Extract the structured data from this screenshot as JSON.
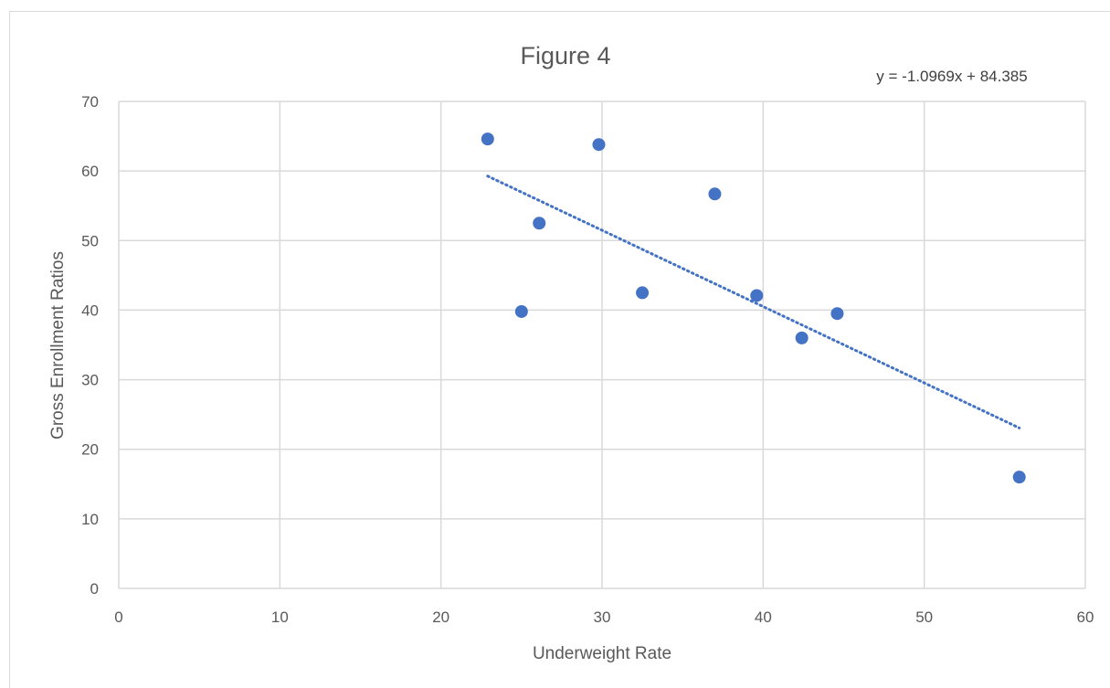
{
  "chart_data": {
    "type": "scatter",
    "title": "Figure 4",
    "xlabel": "Underweight Rate",
    "ylabel": "Gross Enrollment Ratios",
    "xlim": [
      0,
      60
    ],
    "ylim": [
      0,
      70
    ],
    "xticks": [
      0,
      10,
      20,
      30,
      40,
      50,
      60
    ],
    "yticks": [
      0,
      10,
      20,
      30,
      40,
      50,
      60,
      70
    ],
    "grid": true,
    "series": [
      {
        "color": "#4472c4",
        "points": [
          {
            "x": 22.9,
            "y": 64.6
          },
          {
            "x": 25.0,
            "y": 39.8
          },
          {
            "x": 26.1,
            "y": 52.5
          },
          {
            "x": 29.8,
            "y": 63.8
          },
          {
            "x": 32.5,
            "y": 42.5
          },
          {
            "x": 37.0,
            "y": 56.7
          },
          {
            "x": 39.6,
            "y": 42.1
          },
          {
            "x": 42.4,
            "y": 36.0
          },
          {
            "x": 44.6,
            "y": 39.5
          },
          {
            "x": 55.9,
            "y": 16.0
          }
        ]
      }
    ],
    "trendline": {
      "type": "linear",
      "style": "dotted",
      "color": "#4472c4",
      "slope": -1.0969,
      "intercept": 84.385,
      "x_range": [
        22.9,
        55.9
      ],
      "equation_label": "y = -1.0969x + 84.385"
    },
    "colors": {
      "gridline": "#d9d9d9",
      "text": "#595959"
    }
  }
}
